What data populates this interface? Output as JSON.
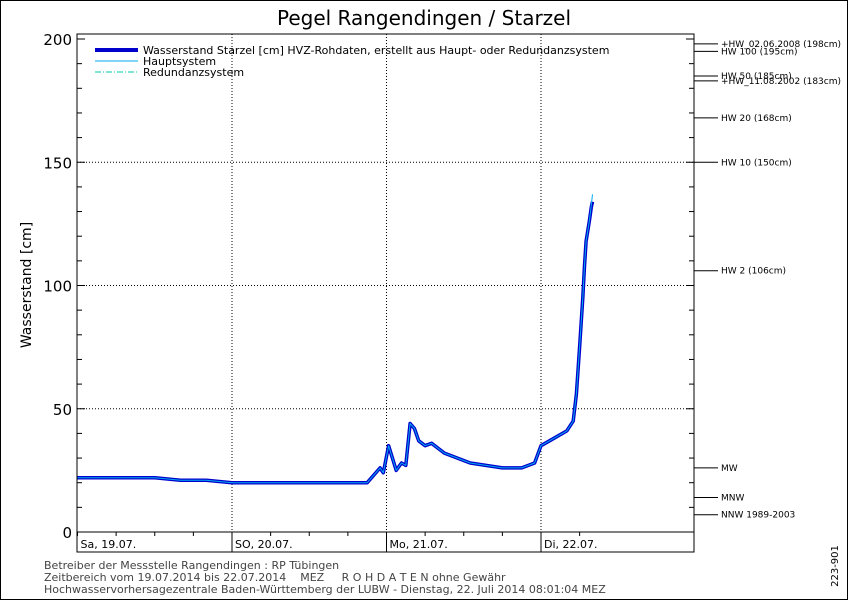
{
  "chart_data": {
    "type": "line",
    "title": "Pegel Rangendingen / Starzel",
    "ylabel": "Wasserstand [cm]",
    "xlabel": "",
    "ylim": [
      0,
      200
    ],
    "yticks": [
      0,
      50,
      100,
      150,
      200
    ],
    "xlim": [
      "2014-07-19 00:00",
      "2014-07-22 10:00"
    ],
    "day_labels": [
      {
        "x": "2014-07-19 00:00",
        "label": "Sa, 19.07."
      },
      {
        "x": "2014-07-20 00:00",
        "label": "SO, 20.07."
      },
      {
        "x": "2014-07-21 00:00",
        "label": "Mo, 21.07."
      },
      {
        "x": "2014-07-22 00:00",
        "label": "Di, 22.07."
      }
    ],
    "grid": true,
    "legend_position": "top-left",
    "legend": [
      {
        "label": "Wasserstand Starzel [cm] HVZ-Rohdaten, erstellt aus Haupt- oder Redundanzsystem",
        "color": "#0000cc",
        "style": "thick"
      },
      {
        "label": "Hauptsystem",
        "color": "#00aaee",
        "style": "solid"
      },
      {
        "label": "Redundanzsystem",
        "color": "#00ccaa",
        "style": "dashdot"
      }
    ],
    "reference_lines": [
      {
        "label": "+HW_02.06.2008 (198cm)",
        "value": 198
      },
      {
        "label": "HW 100 (195cm)",
        "value": 195
      },
      {
        "label": "HW 50 (185cm)",
        "value": 185
      },
      {
        "label": "+HW_11.08.2002 (183cm)",
        "value": 183
      },
      {
        "label": "HW 20 (168cm)",
        "value": 168
      },
      {
        "label": "HW 10 (150cm)",
        "value": 150
      },
      {
        "label": "HW 2 (106cm)",
        "value": 106
      },
      {
        "label": "MW",
        "value": 26
      },
      {
        "label": "MNW",
        "value": 14
      },
      {
        "label": "NNW 1989-2003",
        "value": 7
      }
    ],
    "series": [
      {
        "name": "Wasserstand Starzel [cm] HVZ-Rohdaten, erstellt aus Haupt- oder Redundanzsystem",
        "x": [
          "2014-07-19 00:00",
          "2014-07-19 04:00",
          "2014-07-19 08:00",
          "2014-07-19 12:00",
          "2014-07-19 16:00",
          "2014-07-19 20:00",
          "2014-07-20 00:00",
          "2014-07-20 06:00",
          "2014-07-20 12:00",
          "2014-07-20 18:00",
          "2014-07-20 21:00",
          "2014-07-20 23:00",
          "2014-07-20 23:30",
          "2014-07-21 00:20",
          "2014-07-21 01:30",
          "2014-07-21 02:20",
          "2014-07-21 03:00",
          "2014-07-21 03:40",
          "2014-07-21 04:20",
          "2014-07-21 05:00",
          "2014-07-21 06:00",
          "2014-07-21 07:00",
          "2014-07-21 09:00",
          "2014-07-21 13:00",
          "2014-07-21 18:00",
          "2014-07-21 21:00",
          "2014-07-21 23:00",
          "2014-07-22 00:00",
          "2014-07-22 02:00",
          "2014-07-22 04:00",
          "2014-07-22 05:00",
          "2014-07-22 05:30",
          "2014-07-22 06:00",
          "2014-07-22 06:30",
          "2014-07-22 06:45",
          "2014-07-22 07:00",
          "2014-07-22 07:30",
          "2014-07-22 07:50",
          "2014-07-22 08:00"
        ],
        "y": [
          22,
          22,
          22,
          22,
          21,
          21,
          20,
          20,
          20,
          20,
          20,
          26,
          24,
          35,
          25,
          28,
          27,
          44,
          42,
          37,
          35,
          36,
          32,
          28,
          26,
          26,
          28,
          35,
          38,
          41,
          45,
          56,
          75,
          95,
          108,
          118,
          126,
          132,
          134
        ]
      },
      {
        "name": "Hauptsystem",
        "x": [
          "2014-07-19 00:00",
          "2014-07-19 04:00",
          "2014-07-19 08:00",
          "2014-07-19 12:00",
          "2014-07-19 16:00",
          "2014-07-19 20:00",
          "2014-07-20 00:00",
          "2014-07-20 06:00",
          "2014-07-20 12:00",
          "2014-07-20 18:00",
          "2014-07-20 21:00",
          "2014-07-20 23:00",
          "2014-07-20 23:30",
          "2014-07-21 00:20",
          "2014-07-21 01:30",
          "2014-07-21 02:20",
          "2014-07-21 03:00",
          "2014-07-21 03:40",
          "2014-07-21 04:20",
          "2014-07-21 05:00",
          "2014-07-21 06:00",
          "2014-07-21 07:00",
          "2014-07-21 09:00",
          "2014-07-21 13:00",
          "2014-07-21 18:00",
          "2014-07-21 21:00",
          "2014-07-21 23:00",
          "2014-07-22 00:00",
          "2014-07-22 02:00",
          "2014-07-22 04:00",
          "2014-07-22 05:00",
          "2014-07-22 05:30",
          "2014-07-22 06:00",
          "2014-07-22 06:30",
          "2014-07-22 06:45",
          "2014-07-22 07:00",
          "2014-07-22 07:30",
          "2014-07-22 07:50",
          "2014-07-22 08:00"
        ],
        "y": [
          22,
          22,
          22,
          22,
          21,
          21,
          20,
          20,
          20,
          20,
          20,
          26,
          24,
          35,
          25,
          28,
          27,
          44,
          42,
          37,
          35,
          36,
          32,
          28,
          26,
          26,
          28,
          35,
          38,
          41,
          45,
          56,
          75,
          95,
          108,
          118,
          126,
          133,
          137
        ]
      }
    ]
  },
  "footer": {
    "line1": "Betreiber der Messstelle Rangendingen : RP Tübingen",
    "line2": "Zeitbereich vom 19.07.2014 bis 22.07.2014    MEZ     R O H D A T E N ohne Gewähr",
    "line3": "Hochwasservorhersagezentrale Baden-Württemberg der LUBW - Dienstag, 22. Juli 2014 08:01:04 MEZ"
  },
  "side_code": "223-901"
}
